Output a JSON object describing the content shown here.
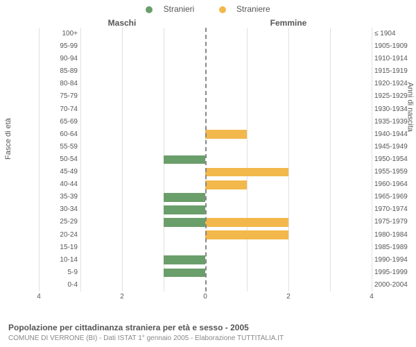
{
  "legend": {
    "male": {
      "label": "Stranieri",
      "color": "#6a9e6a"
    },
    "female": {
      "label": "Straniere",
      "color": "#f2b84b"
    }
  },
  "side_titles": {
    "left": "Maschi",
    "right": "Femmine"
  },
  "axis_labels": {
    "left": "Fasce di età",
    "right": "Anni di nascita"
  },
  "xaxis": {
    "max": 4,
    "ticks": [
      4,
      2,
      0,
      2,
      4
    ]
  },
  "grid_color": "#e0e0e0",
  "divider_color": "#888888",
  "background_color": "#ffffff",
  "font_color": "#555555",
  "bar_height_ratio": 0.7,
  "tick_fontsize": 10,
  "label_fontsize": 11,
  "legend_fontsize": 12,
  "ages": [
    {
      "label": "100+",
      "birth": "≤ 1904",
      "m": 0,
      "f": 0
    },
    {
      "label": "95-99",
      "birth": "1905-1909",
      "m": 0,
      "f": 0
    },
    {
      "label": "90-94",
      "birth": "1910-1914",
      "m": 0,
      "f": 0
    },
    {
      "label": "85-89",
      "birth": "1915-1919",
      "m": 0,
      "f": 0
    },
    {
      "label": "80-84",
      "birth": "1920-1924",
      "m": 0,
      "f": 0
    },
    {
      "label": "75-79",
      "birth": "1925-1929",
      "m": 0,
      "f": 0
    },
    {
      "label": "70-74",
      "birth": "1930-1934",
      "m": 0,
      "f": 0
    },
    {
      "label": "65-69",
      "birth": "1935-1939",
      "m": 0,
      "f": 0
    },
    {
      "label": "60-64",
      "birth": "1940-1944",
      "m": 0,
      "f": 1
    },
    {
      "label": "55-59",
      "birth": "1945-1949",
      "m": 0,
      "f": 0
    },
    {
      "label": "50-54",
      "birth": "1950-1954",
      "m": 1,
      "f": 0
    },
    {
      "label": "45-49",
      "birth": "1955-1959",
      "m": 0,
      "f": 2
    },
    {
      "label": "40-44",
      "birth": "1960-1964",
      "m": 0,
      "f": 1
    },
    {
      "label": "35-39",
      "birth": "1965-1969",
      "m": 1,
      "f": 0
    },
    {
      "label": "30-34",
      "birth": "1970-1974",
      "m": 1,
      "f": 0
    },
    {
      "label": "25-29",
      "birth": "1975-1979",
      "m": 1,
      "f": 2
    },
    {
      "label": "20-24",
      "birth": "1980-1984",
      "m": 0,
      "f": 2
    },
    {
      "label": "15-19",
      "birth": "1985-1989",
      "m": 0,
      "f": 0
    },
    {
      "label": "10-14",
      "birth": "1990-1994",
      "m": 1,
      "f": 0
    },
    {
      "label": "5-9",
      "birth": "1995-1999",
      "m": 1,
      "f": 0
    },
    {
      "label": "0-4",
      "birth": "2000-2004",
      "m": 0,
      "f": 0
    }
  ],
  "footer": {
    "title": "Popolazione per cittadinanza straniera per età e sesso - 2005",
    "subtitle": "COMUNE DI VERRONE (BI) - Dati ISTAT 1° gennaio 2005 - Elaborazione TUTTITALIA.IT"
  }
}
